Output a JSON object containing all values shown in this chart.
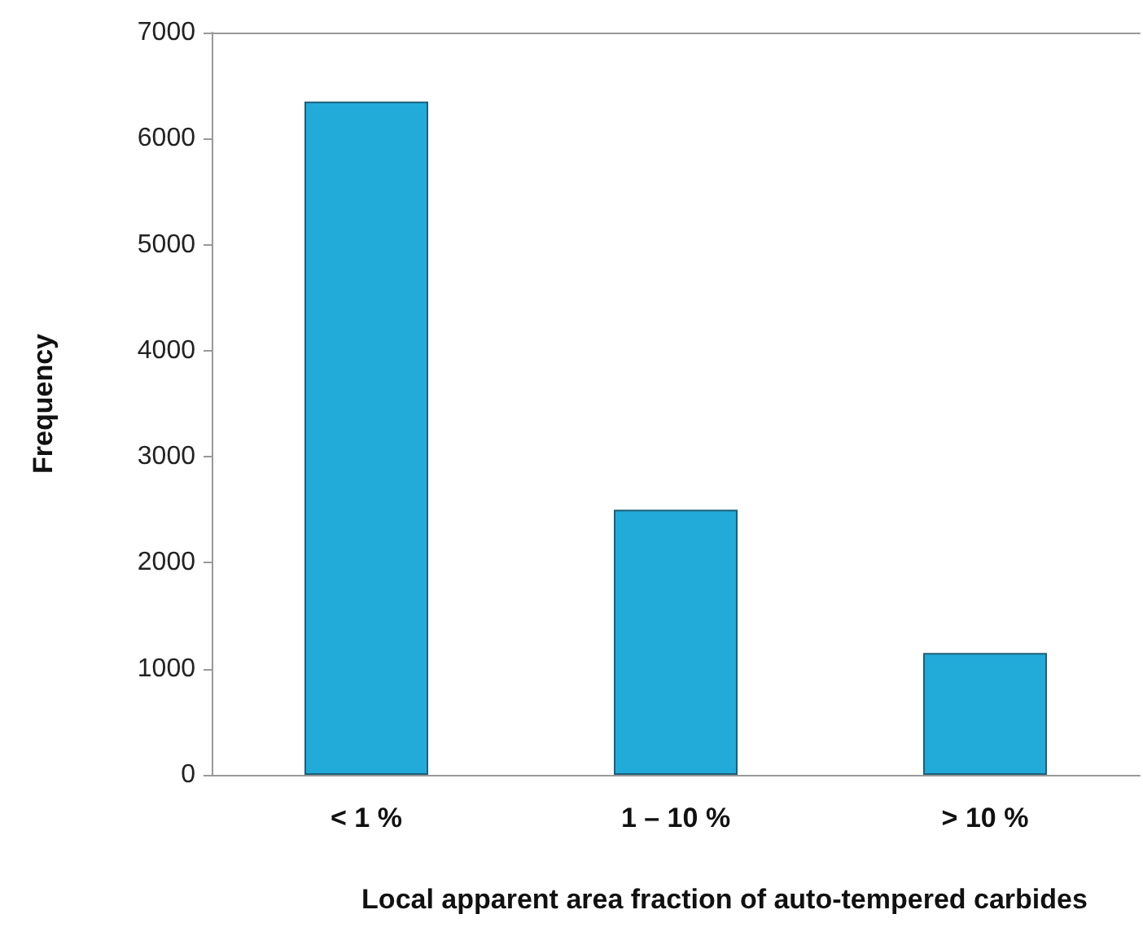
{
  "chart_data": {
    "type": "bar",
    "xlabel": "Local apparent area fraction of auto-tempered carbides",
    "ylabel": "Frequency",
    "categories": [
      "< 1 %",
      "1 – 10 %",
      "> 10 %"
    ],
    "values": [
      6350,
      2500,
      1150
    ],
    "color": "#22aad9",
    "ylim": [
      0,
      7000
    ],
    "yticks": [
      0,
      1000,
      2000,
      3000,
      4000,
      5000,
      6000,
      7000
    ],
    "grid": false
  }
}
